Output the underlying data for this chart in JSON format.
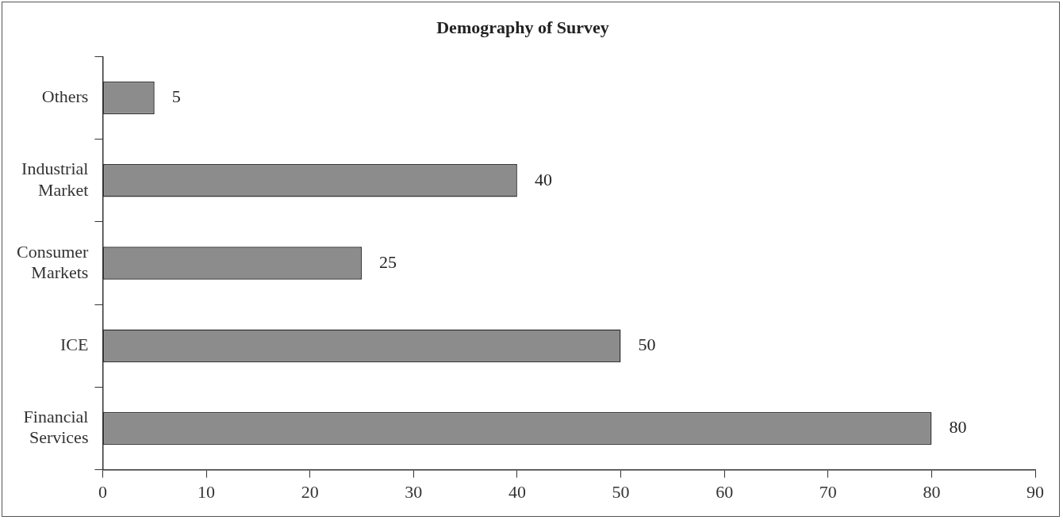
{
  "chart_data": {
    "type": "bar",
    "orientation": "horizontal",
    "title": "Demography of Survey",
    "categories": [
      "Others",
      "Industrial Market",
      "Consumer Markets",
      "ICE",
      "Financial Services"
    ],
    "values": [
      5,
      40,
      25,
      50,
      80
    ],
    "color": "#8c8c8c",
    "xlim": [
      0,
      90
    ],
    "xticks": [
      0,
      10,
      20,
      30,
      40,
      50,
      60,
      70,
      80,
      90
    ],
    "data_labels": true,
    "grid": false,
    "legend": false
  }
}
